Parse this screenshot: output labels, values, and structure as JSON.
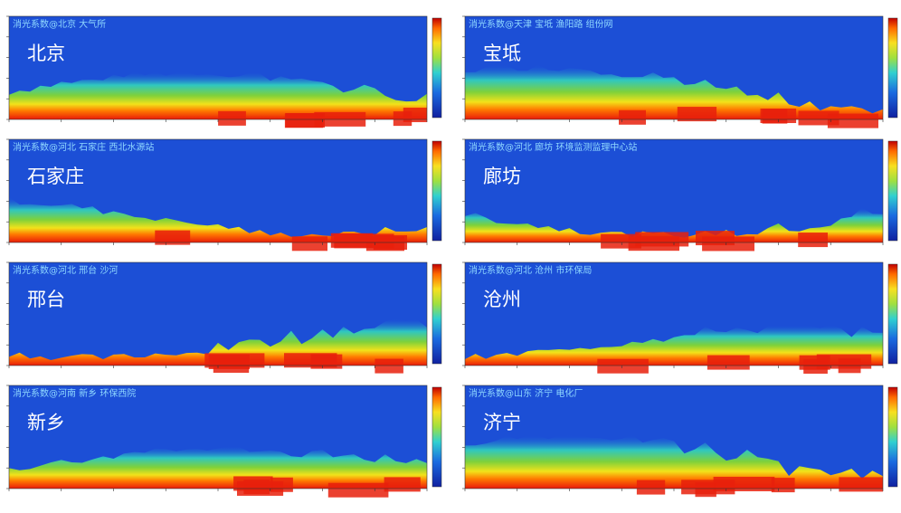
{
  "panels": [
    {
      "title": "消光系数@北京 大气所",
      "city": "北京"
    },
    {
      "title": "消光系数@天津 宝坻 渔阳路 组份网",
      "city": "宝坻"
    },
    {
      "title": "消光系数@河北 石家庄 西北水源站",
      "city": "石家庄"
    },
    {
      "title": "消光系数@河北 廊坊 环境监测监理中心站",
      "city": "廊坊"
    },
    {
      "title": "消光系数@河北 邢台 沙河",
      "city": "邢台"
    },
    {
      "title": "消光系数@河北 沧州 市环保局",
      "city": "沧州"
    },
    {
      "title": "消光系数@河南 新乡 环保西院",
      "city": "新乡"
    },
    {
      "title": "消光系数@山东 济宁 电化厂",
      "city": "济宁"
    }
  ]
}
